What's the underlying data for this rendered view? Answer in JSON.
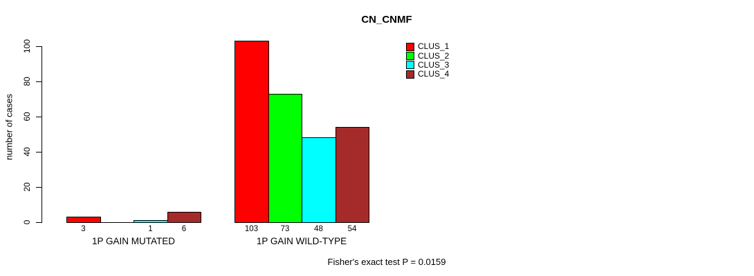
{
  "figure": {
    "background": "#ffffff",
    "foreground": "#000000"
  },
  "chart_data": {
    "type": "bar",
    "title": "CN_CNMF",
    "ylabel": "number of cases",
    "xlabel": "",
    "categories": [
      "1P GAIN MUTATED",
      "1P GAIN WILD-TYPE"
    ],
    "series": [
      {
        "name": "CLUS_1",
        "color": "#FF0000",
        "values": [
          3,
          103
        ]
      },
      {
        "name": "CLUS_2",
        "color": "#00FF00",
        "values": [
          0,
          73
        ]
      },
      {
        "name": "CLUS_3",
        "color": "#00FFFF",
        "values": [
          1,
          48
        ]
      },
      {
        "name": "CLUS_4",
        "color": "#A52A2A",
        "values": [
          6,
          54
        ]
      }
    ],
    "bar_labels": [
      [
        "3",
        "",
        "1",
        "6"
      ],
      [
        "103",
        "73",
        "48",
        "54"
      ]
    ],
    "yticks": [
      0,
      20,
      40,
      60,
      80,
      100
    ],
    "ylim": [
      0,
      103
    ],
    "grid": false,
    "legend_position": "top-right",
    "annotation": "Fisher's exact test P = 0.0159"
  }
}
